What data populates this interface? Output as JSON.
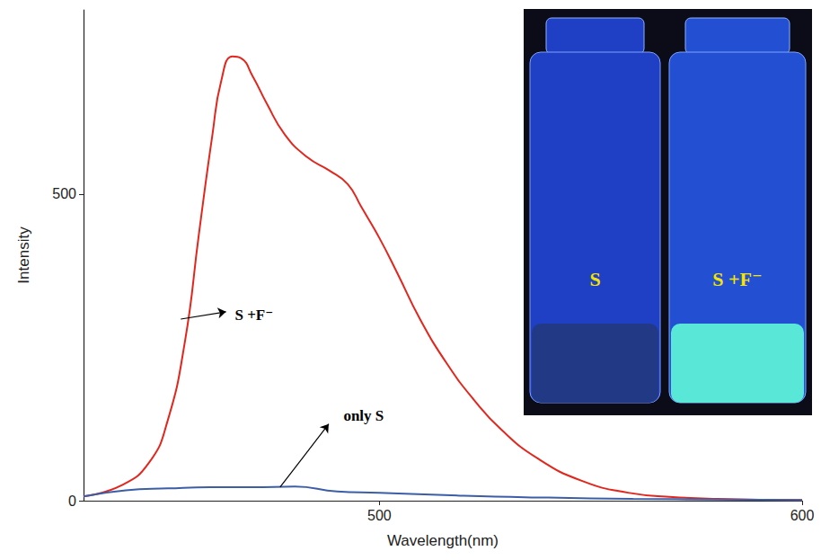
{
  "chart_data": {
    "type": "line",
    "x_label": "Wavelength(nm)",
    "y_label": "Intensity",
    "xlim": [
      430,
      600
    ],
    "xticks": [
      500,
      600
    ],
    "ylim": [
      0,
      800
    ],
    "yticks": [
      0,
      500
    ],
    "series": [
      {
        "name": "S +F⁻",
        "color": "#e3261d",
        "x": [
          430,
          439,
          445.5,
          449.8,
          454,
          457.3,
          460.5,
          462.6,
          465.2,
          467.3,
          470,
          473.3,
          477.6,
          482.9,
          488.2,
          492.5,
          495.7,
          500,
          504.3,
          509.6,
          516,
          522.4,
          528.8,
          537.4,
          548,
          558.8,
          569.4,
          580,
          600
        ],
        "values": [
          7,
          25,
          62,
          128,
          260,
          435,
          597,
          685,
          724,
          721,
          692,
          648,
          597,
          560,
          538,
          516,
          479,
          428,
          370,
          296,
          223,
          164,
          116,
          69,
          32,
          13,
          6,
          3,
          1
        ]
      },
      {
        "name": "only S",
        "color": "#3b5ea6",
        "x": [
          430,
          440,
          450,
          460,
          470,
          480,
          490,
          500,
          520,
          540,
          560,
          580,
          600
        ],
        "values": [
          7,
          17,
          20,
          22,
          22,
          23,
          15,
          13,
          8,
          5,
          3,
          2,
          1
        ]
      }
    ],
    "annotations": [
      {
        "text": "S +F⁻",
        "x": 465.8,
        "y": 303,
        "arrow_from": [
          453,
          296
        ],
        "arrow_to": [
          463.7,
          308
        ]
      },
      {
        "text": "only S",
        "x": 491.5,
        "y": 138,
        "arrow_from": [
          476.5,
          22
        ],
        "arrow_to": [
          488,
          125
        ]
      }
    ],
    "inset": {
      "labels": [
        "S",
        "S +F⁻"
      ]
    }
  }
}
